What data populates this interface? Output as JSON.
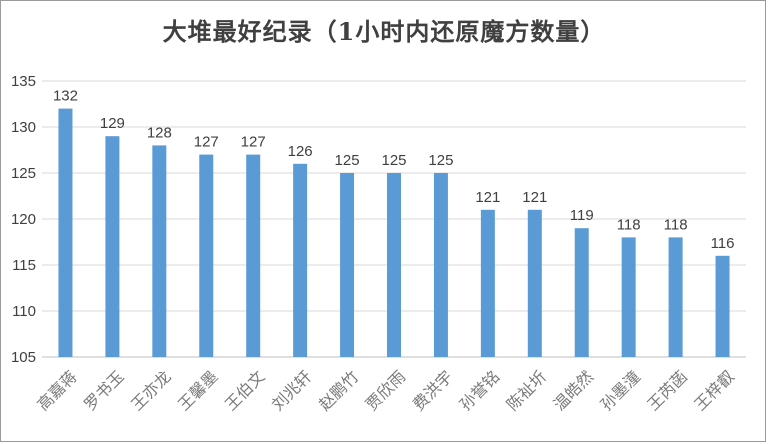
{
  "chart_data": {
    "type": "bar",
    "title": "大堆最好纪录（1小时内还原魔方数量）",
    "categories": [
      "高嘉蒋",
      "罗书玉",
      "王亦龙",
      "王馨墨",
      "王伯文",
      "刘兆轩",
      "赵鹏竹",
      "贾欣雨",
      "费洪宇",
      "孙誉铭",
      "陈祉圻",
      "温皓然",
      "孙墨潼",
      "王芮菡",
      "王梓叡"
    ],
    "values": [
      132,
      129,
      128,
      127,
      127,
      126,
      125,
      125,
      125,
      121,
      121,
      119,
      118,
      118,
      116
    ],
    "ylim": [
      105,
      135
    ],
    "yticks": [
      105,
      110,
      115,
      120,
      125,
      130,
      135
    ],
    "grid": true,
    "legend": "none",
    "bar_color": "#5b9bd5"
  }
}
